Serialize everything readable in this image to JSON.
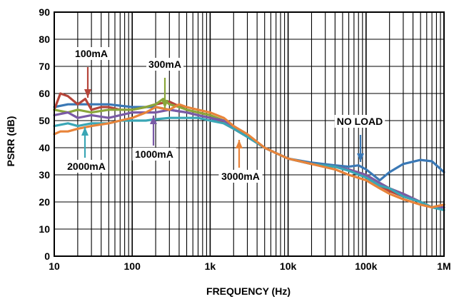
{
  "chart_data": {
    "type": "line",
    "xlabel": "FREQUENCY (Hz)",
    "ylabel": "PSRR (dB)",
    "x_scale": "log",
    "xlim": [
      10,
      1000000
    ],
    "ylim": [
      0,
      90
    ],
    "grid": true,
    "x_ticks": [
      {
        "value": 10,
        "label": "10"
      },
      {
        "value": 100,
        "label": "100"
      },
      {
        "value": 1000,
        "label": "1k"
      },
      {
        "value": 10000,
        "label": "10k"
      },
      {
        "value": 100000,
        "label": "100k"
      },
      {
        "value": 1000000,
        "label": "1M"
      }
    ],
    "y_ticks": [
      0,
      10,
      20,
      30,
      40,
      50,
      60,
      70,
      80,
      90
    ],
    "series": [
      {
        "name": "NO LOAD",
        "color": "#3a78b5",
        "x": [
          10,
          15,
          20,
          30,
          50,
          70,
          100,
          150,
          200,
          300,
          500,
          700,
          1000,
          1500,
          2000,
          3000,
          5000,
          7000,
          10000,
          20000,
          40000,
          60000,
          80000,
          100000,
          150000,
          200000,
          300000,
          500000,
          700000,
          1000000
        ],
        "y": [
          55,
          56,
          56,
          56,
          56,
          55.5,
          55,
          55,
          55,
          54,
          53,
          52,
          51,
          49,
          47,
          44,
          40,
          38,
          36,
          34.5,
          33.5,
          33,
          33.5,
          32,
          28,
          31,
          34,
          35.5,
          35,
          31
        ]
      },
      {
        "name": "100mA",
        "color": "#b5453a",
        "x": [
          10,
          12,
          15,
          20,
          25,
          30,
          40,
          50,
          70,
          100,
          150,
          200,
          300,
          500,
          700,
          1000,
          1500,
          2000,
          3000,
          5000,
          7000,
          10000,
          20000,
          40000,
          60000,
          100000,
          150000,
          200000,
          300000,
          500000,
          700000,
          1000000
        ],
        "y": [
          54,
          60,
          59,
          56,
          58,
          54,
          55,
          55,
          54,
          54,
          55,
          56,
          57,
          54,
          53,
          52,
          49,
          47,
          44,
          40,
          38,
          36,
          34,
          33,
          32,
          29,
          26,
          24,
          22,
          20,
          18,
          19
        ]
      },
      {
        "name": "300mA",
        "color": "#8aa63a",
        "x": [
          10,
          15,
          20,
          30,
          50,
          70,
          100,
          150,
          200,
          250,
          300,
          400,
          500,
          700,
          1000,
          1500,
          2000,
          3000,
          5000,
          7000,
          10000,
          20000,
          40000,
          60000,
          100000,
          150000,
          200000,
          300000,
          500000,
          700000,
          1000000
        ],
        "y": [
          54,
          53,
          54,
          53,
          54,
          54,
          54,
          55,
          56,
          58,
          56,
          55,
          54,
          53,
          52,
          50,
          48,
          44,
          40,
          38,
          36,
          34,
          33,
          32,
          30,
          27,
          25,
          23,
          20,
          18,
          19
        ]
      },
      {
        "name": "1000mA",
        "color": "#7a5aa6",
        "x": [
          10,
          15,
          20,
          30,
          50,
          70,
          100,
          150,
          200,
          300,
          500,
          700,
          1000,
          1500,
          2000,
          3000,
          5000,
          7000,
          10000,
          20000,
          40000,
          60000,
          100000,
          150000,
          200000,
          300000,
          500000,
          700000,
          1000000
        ],
        "y": [
          52,
          53,
          51,
          52,
          51,
          52,
          53,
          53,
          53,
          54,
          53,
          52,
          51,
          50,
          48,
          44,
          40,
          38,
          36,
          34,
          33,
          32,
          30,
          27,
          25,
          23,
          20,
          18,
          18
        ]
      },
      {
        "name": "2000mA",
        "color": "#3aa6b5",
        "x": [
          10,
          15,
          20,
          30,
          50,
          70,
          100,
          150,
          200,
          300,
          500,
          700,
          1000,
          1500,
          2000,
          3000,
          5000,
          7000,
          10000,
          20000,
          40000,
          60000,
          100000,
          150000,
          200000,
          300000,
          500000,
          700000,
          1000000
        ],
        "y": [
          48,
          49,
          48,
          49,
          49,
          50,
          50,
          50,
          50.5,
          51,
          51,
          51,
          50,
          49,
          47,
          44,
          40,
          38,
          36,
          34,
          33,
          31.5,
          29,
          26,
          25,
          22,
          20,
          18,
          17
        ]
      },
      {
        "name": "3000mA",
        "color": "#e8843a",
        "x": [
          10,
          12,
          15,
          20,
          30,
          50,
          70,
          100,
          150,
          200,
          300,
          400,
          500,
          700,
          1000,
          1500,
          2000,
          3000,
          5000,
          7000,
          10000,
          20000,
          40000,
          60000,
          100000,
          150000,
          200000,
          300000,
          500000,
          700000,
          1000000
        ],
        "y": [
          45,
          46,
          46,
          47,
          48,
          49,
          50,
          51,
          53,
          55,
          54,
          56,
          55,
          54,
          53,
          51,
          48,
          45,
          40,
          38,
          36,
          34,
          32,
          30,
          28,
          25,
          23,
          21,
          19,
          18,
          19
        ]
      }
    ],
    "annotations": [
      {
        "text": "100mA",
        "series": "100mA"
      },
      {
        "text": "300mA",
        "series": "300mA"
      },
      {
        "text": "NO LOAD",
        "series": "NO LOAD"
      },
      {
        "text": "2000mA",
        "series": "2000mA"
      },
      {
        "text": "1000mA",
        "series": "1000mA"
      },
      {
        "text": "3000mA",
        "series": "3000mA"
      }
    ]
  }
}
